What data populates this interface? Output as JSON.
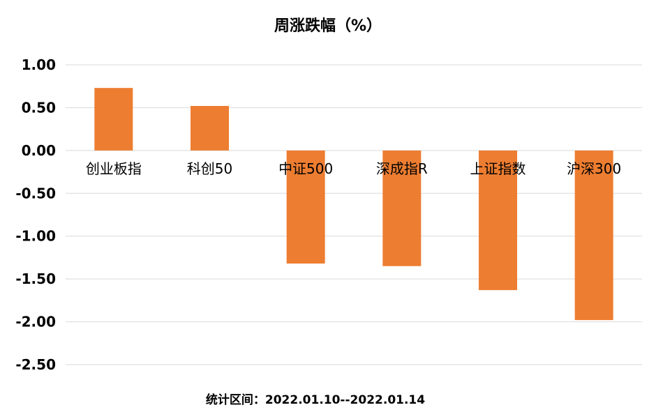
{
  "chart_data": {
    "type": "bar",
    "title": "周涨跌幅（%）",
    "categories": [
      "创业板指",
      "科创50",
      "中证500",
      "深成指R",
      "上证指数",
      "沪深300"
    ],
    "values": [
      0.73,
      0.52,
      -1.32,
      -1.35,
      -1.63,
      -1.98
    ],
    "ylim": [
      -2.5,
      1.0
    ],
    "yticks": [
      "1.00",
      "0.50",
      "0.00",
      "-0.50",
      "-1.00",
      "-1.50",
      "-2.00",
      "-2.50"
    ],
    "ytick_values": [
      1.0,
      0.5,
      0.0,
      -0.5,
      -1.0,
      -1.5,
      -2.0,
      -2.5
    ],
    "grid": true,
    "bar_color": "#ED7D31",
    "grid_color": "#D9D9D9",
    "footnote": "统计区间：2022.01.10--2022.01.14"
  }
}
